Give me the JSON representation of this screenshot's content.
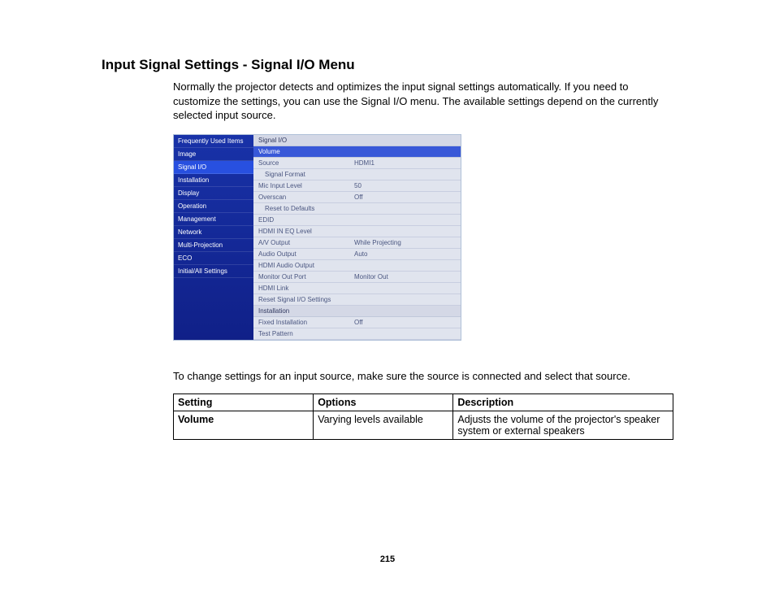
{
  "heading": "Input Signal Settings - Signal I/O Menu",
  "intro": "Normally the projector detects and optimizes the input signal settings automatically. If you need to customize the settings, you can use the Signal I/O menu. The available settings depend on the currently selected input source.",
  "note": "To change settings for an input source, make sure the source is connected and select that source.",
  "page_number": "215",
  "menu": {
    "sidebar": [
      {
        "label": "Frequently Used Items",
        "selected": false
      },
      {
        "label": "Image",
        "selected": false
      },
      {
        "label": "Signal I/O",
        "selected": true
      },
      {
        "label": "Installation",
        "selected": false
      },
      {
        "label": "Display",
        "selected": false
      },
      {
        "label": "Operation",
        "selected": false
      },
      {
        "label": "Management",
        "selected": false
      },
      {
        "label": "Network",
        "selected": false
      },
      {
        "label": "Multi-Projection",
        "selected": false
      },
      {
        "label": "ECO",
        "selected": false
      },
      {
        "label": "Initial/All Settings",
        "selected": false
      }
    ],
    "section1_title": "Signal I/O",
    "section1_selected": "Volume",
    "section1_rows": [
      {
        "label": "Source",
        "value": "HDMI1",
        "sub": false
      },
      {
        "label": "Signal Format",
        "value": "",
        "sub": true
      },
      {
        "label": "Mic Input Level",
        "value": "50",
        "sub": false
      },
      {
        "label": "Overscan",
        "value": "Off",
        "sub": false
      },
      {
        "label": "Reset to Defaults",
        "value": "",
        "sub": true
      },
      {
        "label": "EDID",
        "value": "",
        "sub": false
      },
      {
        "label": "HDMI IN EQ Level",
        "value": "",
        "sub": false
      },
      {
        "label": "A/V Output",
        "value": "While Projecting",
        "sub": false
      },
      {
        "label": "Audio Output",
        "value": "Auto",
        "sub": false
      },
      {
        "label": "HDMI Audio Output",
        "value": "",
        "sub": false
      },
      {
        "label": "Monitor Out Port",
        "value": "Monitor Out",
        "sub": false
      },
      {
        "label": "HDMI Link",
        "value": "",
        "sub": false
      },
      {
        "label": "Reset Signal I/O Settings",
        "value": "",
        "sub": false
      }
    ],
    "section2_title": "Installation",
    "section2_rows": [
      {
        "label": "Fixed Installation",
        "value": "Off",
        "sub": false
      },
      {
        "label": "Test Pattern",
        "value": "",
        "sub": false
      }
    ]
  },
  "table": {
    "headers": [
      "Setting",
      "Options",
      "Description"
    ],
    "rows": [
      {
        "setting": "Volume",
        "options": "Varying levels available",
        "description": "Adjusts the volume of the projector's speaker system or external speakers"
      }
    ]
  },
  "colors": {
    "sidebar_bg_top": "#1832a8",
    "sidebar_bg_bottom": "#102088",
    "sidebar_selected": "#2850e0",
    "panel_bg": "#e0e4ee",
    "panel_text": "#4a5680",
    "panel_selected": "#3858d8",
    "border": "#c0c8da",
    "page_bg": "#ffffff",
    "text": "#000000"
  }
}
